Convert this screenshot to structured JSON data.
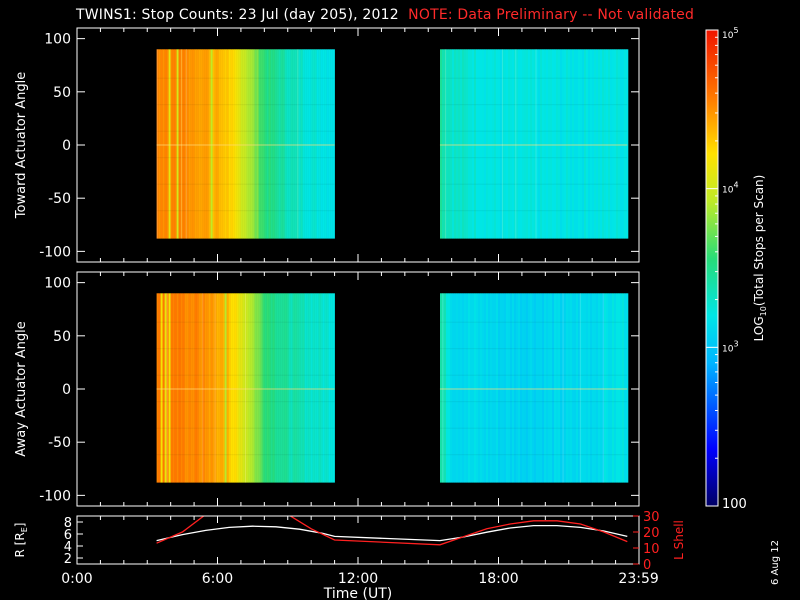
{
  "title": {
    "main": "TWINS1: Stop Counts: 23 Jul (day 205), 2012",
    "note": "NOTE: Data Preliminary -- Not validated"
  },
  "footer_date": "6 Aug 12",
  "colors": {
    "background": "#000000",
    "axes": "#ffffff",
    "note": "#ff2a2a",
    "lshell": "#ff2020",
    "radius": "#ffffff"
  },
  "chart_data": [
    {
      "type": "heatmap",
      "ylabel": "Toward Actuator Angle",
      "ylim": [
        -110,
        110
      ],
      "yticks": [
        100,
        50,
        0,
        -50,
        -100
      ],
      "xlim": [
        0,
        24
      ],
      "data_blocks": [
        {
          "x_start": 3.4,
          "x_end": 11.0,
          "y_range": [
            -88,
            90
          ],
          "log_profile": [
            [
              3.4,
              4.55
            ],
            [
              4.4,
              4.52
            ],
            [
              5.4,
              4.45
            ],
            [
              6.4,
              4.3
            ],
            [
              7.2,
              3.95
            ],
            [
              8.0,
              3.55
            ],
            [
              9.0,
              3.35
            ],
            [
              10.0,
              3.25
            ],
            [
              11.0,
              3.2
            ]
          ]
        },
        {
          "x_start": 15.5,
          "x_end": 23.5,
          "y_range": [
            -88,
            90
          ],
          "log_profile": [
            [
              15.5,
              3.45
            ],
            [
              16.0,
              3.3
            ],
            [
              18.0,
              3.2
            ],
            [
              21.0,
              3.2
            ],
            [
              23.5,
              3.22
            ]
          ]
        }
      ]
    },
    {
      "type": "heatmap",
      "ylabel": "Away Actuator Angle",
      "ylim": [
        -110,
        110
      ],
      "yticks": [
        100,
        50,
        0,
        -50,
        -100
      ],
      "xlim": [
        0,
        24
      ],
      "data_blocks": [
        {
          "x_start": 3.4,
          "x_end": 11.0,
          "y_range": [
            -88,
            90
          ],
          "log_profile": [
            [
              3.4,
              4.6
            ],
            [
              4.4,
              4.55
            ],
            [
              5.4,
              4.5
            ],
            [
              6.4,
              4.35
            ],
            [
              7.2,
              4.0
            ],
            [
              8.0,
              3.6
            ],
            [
              9.0,
              3.4
            ],
            [
              10.0,
              3.3
            ],
            [
              11.0,
              3.25
            ]
          ]
        },
        {
          "x_start": 15.5,
          "x_end": 23.5,
          "y_range": [
            -88,
            90
          ],
          "log_profile": [
            [
              15.5,
              3.4
            ],
            [
              16.0,
              3.15
            ],
            [
              18.0,
              3.1
            ],
            [
              21.0,
              3.1
            ],
            [
              23.5,
              3.2
            ]
          ]
        }
      ]
    },
    {
      "type": "line",
      "xlabel": "Time (UT)",
      "xlim": [
        0,
        24
      ],
      "xticks": [
        0,
        6,
        12,
        18,
        23.983
      ],
      "xtick_labels": [
        "0:00",
        "6:00",
        "12:00",
        "18:00",
        "23:59"
      ],
      "ylabel_left": "R [R",
      "ylabel_left_sub": "E",
      "ylabel_left_suffix": "]",
      "ylim_left": [
        1,
        9
      ],
      "yticks_left": [
        8,
        6,
        4,
        2
      ],
      "ylabel_right": "L Shell",
      "ylim_right": [
        0,
        30
      ],
      "yticks_right": [
        30,
        20,
        10,
        0
      ],
      "series": [
        {
          "axis": "left",
          "x": [
            3.4,
            4.5,
            5.5,
            6.5,
            7.5,
            8.5,
            9.5,
            10.5,
            11.0,
            15.5,
            16.5,
            17.5,
            18.5,
            19.5,
            20.5,
            21.5,
            22.5,
            23.5
          ],
          "y": [
            4.9,
            5.9,
            6.6,
            7.1,
            7.3,
            7.2,
            6.8,
            6.1,
            5.6,
            4.9,
            5.5,
            6.3,
            7.0,
            7.4,
            7.4,
            7.1,
            6.5,
            5.6
          ]
        },
        {
          "axis": "right",
          "x": [
            3.4,
            4.5,
            5.5,
            9.0,
            10.0,
            11.0,
            15.5,
            16.5,
            17.5,
            18.5,
            19.5,
            20.5,
            21.5,
            22.5,
            23.5
          ],
          "y": [
            13,
            20,
            31,
            31,
            22,
            15,
            12,
            17,
            22,
            25,
            27,
            27,
            25,
            20,
            14
          ]
        }
      ]
    }
  ],
  "colorbar": {
    "label_prefix": "LOG",
    "label_sub": "10",
    "label_suffix": "(Total Stops per Scan)",
    "log_range": [
      2,
      5
    ],
    "ticks": [
      {
        "log": 5,
        "base": "10",
        "exp": "5"
      },
      {
        "log": 4,
        "base": "10",
        "exp": "4"
      },
      {
        "log": 3,
        "base": "10",
        "exp": "3"
      },
      {
        "log": 2,
        "label": "100"
      }
    ]
  }
}
